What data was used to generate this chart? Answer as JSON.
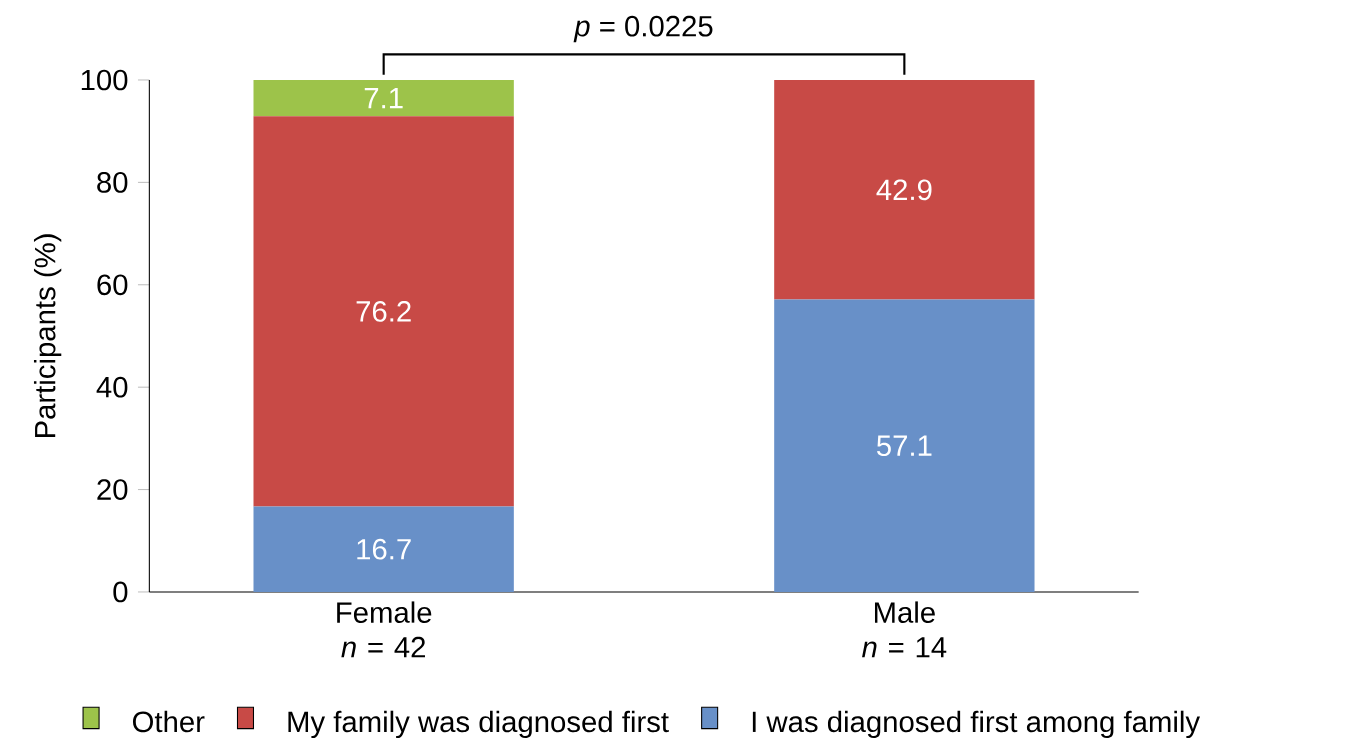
{
  "chart_data": {
    "type": "bar",
    "stacked": true,
    "categories": [
      "Female *n* = 42",
      "Male *n* = 14"
    ],
    "series": [
      {
        "name": "I was diagnosed first among family",
        "color": "#6890c8",
        "values": [
          16.7,
          57.1
        ]
      },
      {
        "name": "My family was diagnosed first",
        "color": "#c84a46",
        "values": [
          76.2,
          42.9
        ]
      },
      {
        "name": "Other",
        "color": "#9dc34a",
        "values": [
          7.1,
          null
        ]
      }
    ],
    "ylabel": "Participants (%)",
    "ylim": [
      0,
      100
    ],
    "yticks": [
      0,
      20,
      40,
      60,
      80,
      100
    ],
    "data_labels": true,
    "legend": "bottom",
    "grid": false,
    "annotations": [
      "*p* = 0.0225"
    ]
  }
}
